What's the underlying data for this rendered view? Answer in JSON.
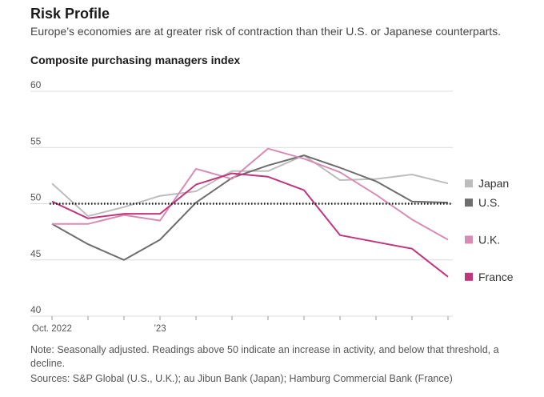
{
  "header": {
    "title": "Risk Profile",
    "subtitle": "Europe’s economies are at greater risk of contraction than their U.S. or Japanese counterparts."
  },
  "chart_data": {
    "type": "line",
    "title": "Composite purchasing managers index",
    "xlabel": "",
    "ylabel": "",
    "ylim": [
      40,
      60
    ],
    "yticks": [
      40,
      45,
      50,
      55,
      60
    ],
    "x": [
      "2022-10",
      "2022-11",
      "2022-12",
      "2023-01",
      "2023-02",
      "2023-03",
      "2023-04",
      "2023-05",
      "2023-06",
      "2023-07",
      "2023-08",
      "2023-09"
    ],
    "xtick_labels": [
      {
        "index": 0,
        "label": "Oct. 2022"
      },
      {
        "index": 3,
        "label": "’23"
      }
    ],
    "reference_line": {
      "y": 50,
      "style": "dotted"
    },
    "grid": "horizontal",
    "legend": "right, labels at line ends",
    "series": [
      {
        "name": "Japan",
        "color": "#bdbdbd",
        "values": [
          51.8,
          48.9,
          49.7,
          50.7,
          51.1,
          52.9,
          52.9,
          54.3,
          52.1,
          52.2,
          52.6,
          51.8
        ]
      },
      {
        "name": "U.S.",
        "color": "#6e6e6e",
        "values": [
          48.2,
          46.4,
          45.0,
          46.8,
          50.1,
          52.3,
          53.4,
          54.3,
          53.2,
          52.0,
          50.2,
          50.1
        ]
      },
      {
        "name": "U.K.",
        "color": "#d98cb3",
        "values": [
          48.2,
          48.2,
          49.0,
          48.5,
          53.1,
          52.2,
          54.9,
          54.0,
          52.8,
          50.8,
          48.6,
          46.8
        ]
      },
      {
        "name": "France",
        "color": "#c2357d",
        "values": [
          50.2,
          48.7,
          49.1,
          49.1,
          51.7,
          52.7,
          52.4,
          51.2,
          47.2,
          46.6,
          46.0,
          43.5
        ]
      }
    ]
  },
  "footer": {
    "note": "Note: Seasonally adjusted. Readings above 50 indicate an increase in activity, and below that threshold, a decline.",
    "sources": "Sources: S&P Global (U.S., U.K.); au Jibun Bank (Japan); Hamburg Commercial Bank (France)"
  }
}
